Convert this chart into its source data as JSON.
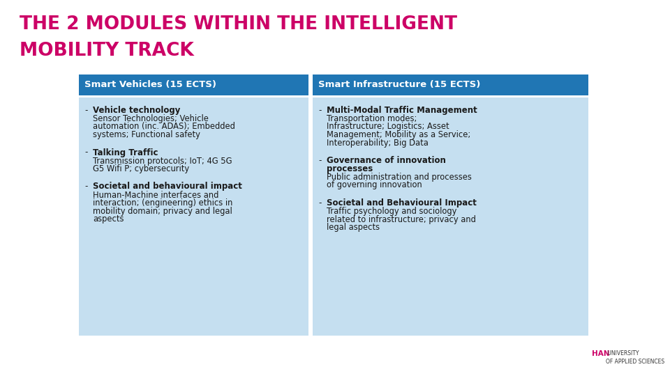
{
  "title_line1": "THE 2 MODULES WITHIN THE INTELLIGENT",
  "title_line2": "MOBILITY TRACK",
  "title_color": "#CC0066",
  "bg_color": "#FFFFFF",
  "header_bg": "#2076B4",
  "header_text_color": "#FFFFFF",
  "cell_bg": "#C5DFF0",
  "header1": "Smart Vehicles (15 ECTS)",
  "header2": "Smart Infrastructure (15 ECTS)",
  "col1_items": [
    {
      "bold": "Vehicle technology",
      "normal": "Sensor Technologies; Vehicle\nautomation (inc. ADAS); Embedded\nsystems; Functional safety"
    },
    {
      "bold": "Talking Traffic",
      "normal": "Transmission protocols; IoT; 4G 5G\nG5 Wifi P; cybersecurity"
    },
    {
      "bold": "Societal and behavioural impact",
      "normal": "Human-Machine interfaces and\ninteraction; (engineering) ethics in\nmobility domain; privacy and legal\naspects"
    }
  ],
  "col2_items": [
    {
      "bold": "Multi-Modal Traffic Management",
      "normal": "Transportation modes;\nInfrastructure; Logistics; Asset\nManagement; Mobility as a Service;\nInteroperability; Big Data"
    },
    {
      "bold": "Governance of innovation\nprocesses",
      "normal": "Public administration and processes\nof governing innovation"
    },
    {
      "bold": "Societal and Behavioural Impact",
      "normal": "Traffic psychology and sociology\nrelated to infrastructure; privacy and\nlegal aspects"
    }
  ],
  "han_text": "HAN",
  "han_color": "#CC0066",
  "uni_text": " UNIVERSITY\nOF APPLIED SCIENCES",
  "uni_color": "#333333"
}
